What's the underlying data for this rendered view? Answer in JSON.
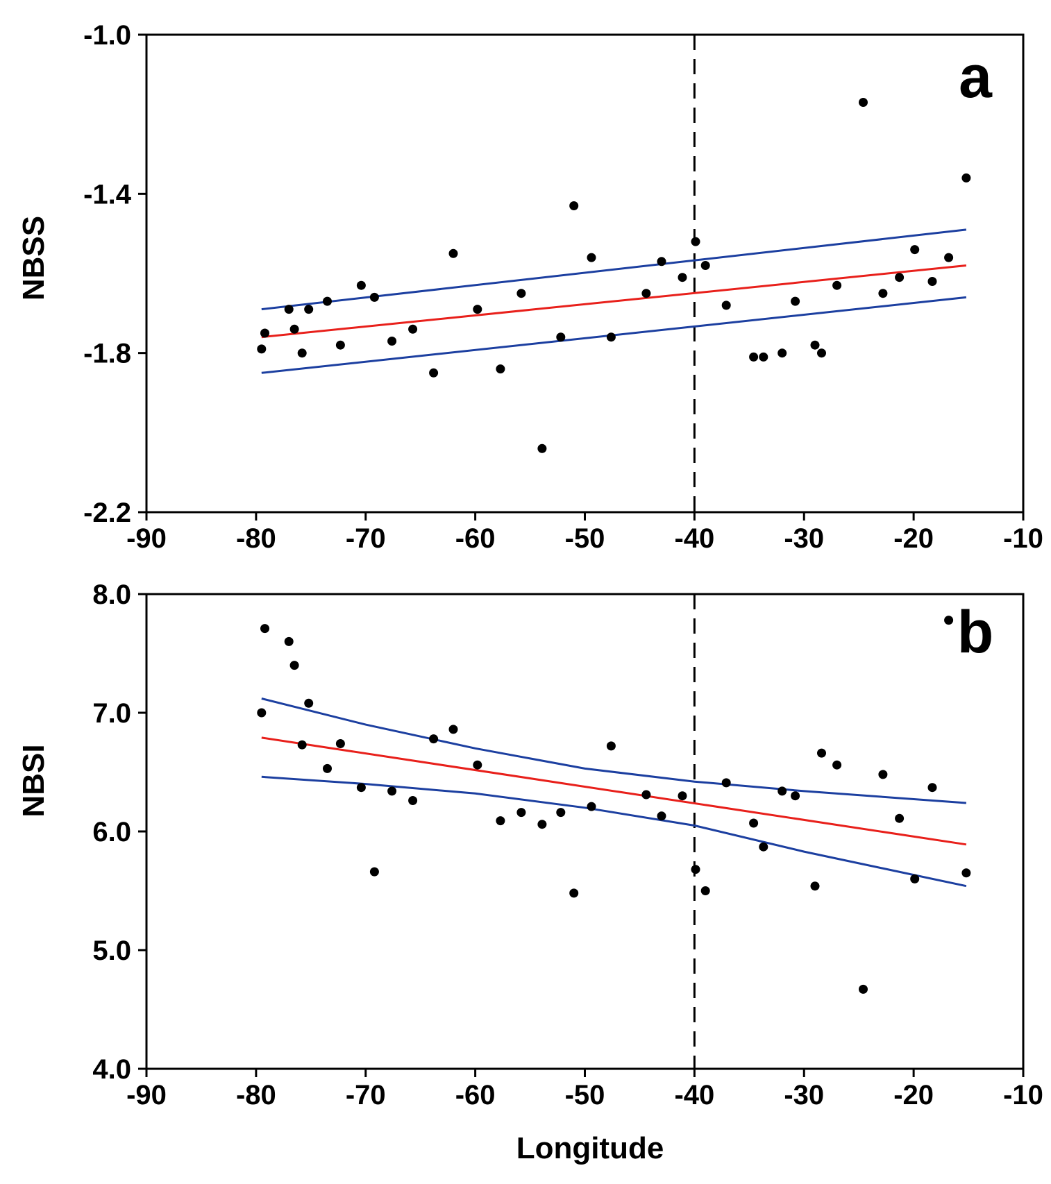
{
  "colors": {
    "points": "#000000",
    "fit": "#e8201b",
    "ci": "#1c3fa0",
    "divider": "#000000"
  },
  "chart_data": [
    {
      "type": "scatter",
      "panel_label": "a",
      "ylabel": "NBSS",
      "xlabel": "",
      "xlim": [
        -90,
        -10
      ],
      "ylim": [
        -2.2,
        -1.0
      ],
      "xticks": [
        -90,
        -80,
        -70,
        -60,
        -50,
        -40,
        -30,
        -20,
        -10
      ],
      "yticks": [
        -2.2,
        -1.8,
        -1.4,
        -1.0
      ],
      "ytick_labels": [
        "-2.2",
        "-1.8",
        "-1.4",
        "-1.0"
      ],
      "divider_x": -40,
      "points": [
        [
          -79.5,
          -1.79
        ],
        [
          -79.2,
          -1.75
        ],
        [
          -77.0,
          -1.69
        ],
        [
          -76.5,
          -1.74
        ],
        [
          -75.8,
          -1.8
        ],
        [
          -75.2,
          -1.69
        ],
        [
          -73.5,
          -1.67
        ],
        [
          -72.3,
          -1.78
        ],
        [
          -70.4,
          -1.63
        ],
        [
          -69.2,
          -1.66
        ],
        [
          -67.6,
          -1.77
        ],
        [
          -65.7,
          -1.74
        ],
        [
          -63.8,
          -1.85
        ],
        [
          -62.0,
          -1.55
        ],
        [
          -59.8,
          -1.69
        ],
        [
          -57.7,
          -1.84
        ],
        [
          -55.8,
          -1.65
        ],
        [
          -53.9,
          -2.04
        ],
        [
          -52.2,
          -1.76
        ],
        [
          -51.0,
          -1.43
        ],
        [
          -49.4,
          -1.56
        ],
        [
          -47.6,
          -1.76
        ],
        [
          -44.4,
          -1.65
        ],
        [
          -43.0,
          -1.57
        ],
        [
          -41.1,
          -1.61
        ],
        [
          -39.9,
          -1.52
        ],
        [
          -39.0,
          -1.58
        ],
        [
          -37.1,
          -1.68
        ],
        [
          -34.6,
          -1.81
        ],
        [
          -33.7,
          -1.81
        ],
        [
          -32.0,
          -1.8
        ],
        [
          -30.8,
          -1.67
        ],
        [
          -29.0,
          -1.78
        ],
        [
          -28.4,
          -1.8
        ],
        [
          -27.0,
          -1.63
        ],
        [
          -24.6,
          -1.17
        ],
        [
          -22.8,
          -1.65
        ],
        [
          -21.3,
          -1.61
        ],
        [
          -19.9,
          -1.54
        ],
        [
          -18.3,
          -1.62
        ],
        [
          -16.8,
          -1.56
        ],
        [
          -15.2,
          -1.36
        ]
      ],
      "fit_line": [
        [
          -79.5,
          -1.76
        ],
        [
          -15.2,
          -1.58
        ]
      ],
      "ci_upper": [
        [
          -79.5,
          -1.69
        ],
        [
          -15.2,
          -1.49
        ]
      ],
      "ci_lower": [
        [
          -79.5,
          -1.85
        ],
        [
          -15.2,
          -1.66
        ]
      ]
    },
    {
      "type": "scatter",
      "panel_label": "b",
      "ylabel": "NBSI",
      "xlabel": "Longitude",
      "xlim": [
        -90,
        -10
      ],
      "ylim": [
        4.0,
        8.0
      ],
      "xticks": [
        -90,
        -80,
        -70,
        -60,
        -50,
        -40,
        -30,
        -20,
        -10
      ],
      "yticks": [
        4.0,
        5.0,
        6.0,
        7.0,
        8.0
      ],
      "ytick_labels": [
        "4.0",
        "5.0",
        "6.0",
        "7.0",
        "8.0"
      ],
      "divider_x": -40,
      "points": [
        [
          -79.5,
          7.0
        ],
        [
          -79.2,
          7.71
        ],
        [
          -77.0,
          7.6
        ],
        [
          -76.5,
          7.4
        ],
        [
          -75.8,
          6.73
        ],
        [
          -75.2,
          7.08
        ],
        [
          -73.5,
          6.53
        ],
        [
          -72.3,
          6.74
        ],
        [
          -70.4,
          6.37
        ],
        [
          -69.2,
          5.66
        ],
        [
          -67.6,
          6.34
        ],
        [
          -65.7,
          6.26
        ],
        [
          -63.8,
          6.78
        ],
        [
          -62.0,
          6.86
        ],
        [
          -59.8,
          6.56
        ],
        [
          -57.7,
          6.09
        ],
        [
          -55.8,
          6.16
        ],
        [
          -53.9,
          6.06
        ],
        [
          -52.2,
          6.16
        ],
        [
          -51.0,
          5.48
        ],
        [
          -49.4,
          6.21
        ],
        [
          -47.6,
          6.72
        ],
        [
          -44.4,
          6.31
        ],
        [
          -43.0,
          6.13
        ],
        [
          -41.1,
          6.3
        ],
        [
          -39.9,
          5.68
        ],
        [
          -39.0,
          5.5
        ],
        [
          -37.1,
          6.41
        ],
        [
          -34.6,
          6.07
        ],
        [
          -33.7,
          5.87
        ],
        [
          -32.0,
          6.34
        ],
        [
          -30.8,
          6.3
        ],
        [
          -29.0,
          5.54
        ],
        [
          -28.4,
          6.66
        ],
        [
          -27.0,
          6.56
        ],
        [
          -24.6,
          4.67
        ],
        [
          -22.8,
          6.48
        ],
        [
          -21.3,
          6.11
        ],
        [
          -19.9,
          5.6
        ],
        [
          -18.3,
          6.37
        ],
        [
          -16.8,
          7.78
        ],
        [
          -15.2,
          5.65
        ]
      ],
      "fit_line": [
        [
          -79.5,
          6.79
        ],
        [
          -15.2,
          5.89
        ]
      ],
      "ci_upper": [
        [
          -79.5,
          7.12
        ],
        [
          -70,
          6.9
        ],
        [
          -60,
          6.7
        ],
        [
          -50,
          6.53
        ],
        [
          -40,
          6.42
        ],
        [
          -30,
          6.34
        ],
        [
          -15.2,
          6.24
        ]
      ],
      "ci_lower": [
        [
          -79.5,
          6.46
        ],
        [
          -70,
          6.4
        ],
        [
          -60,
          6.32
        ],
        [
          -50,
          6.2
        ],
        [
          -40,
          6.05
        ],
        [
          -30,
          5.83
        ],
        [
          -15.2,
          5.54
        ]
      ]
    }
  ]
}
